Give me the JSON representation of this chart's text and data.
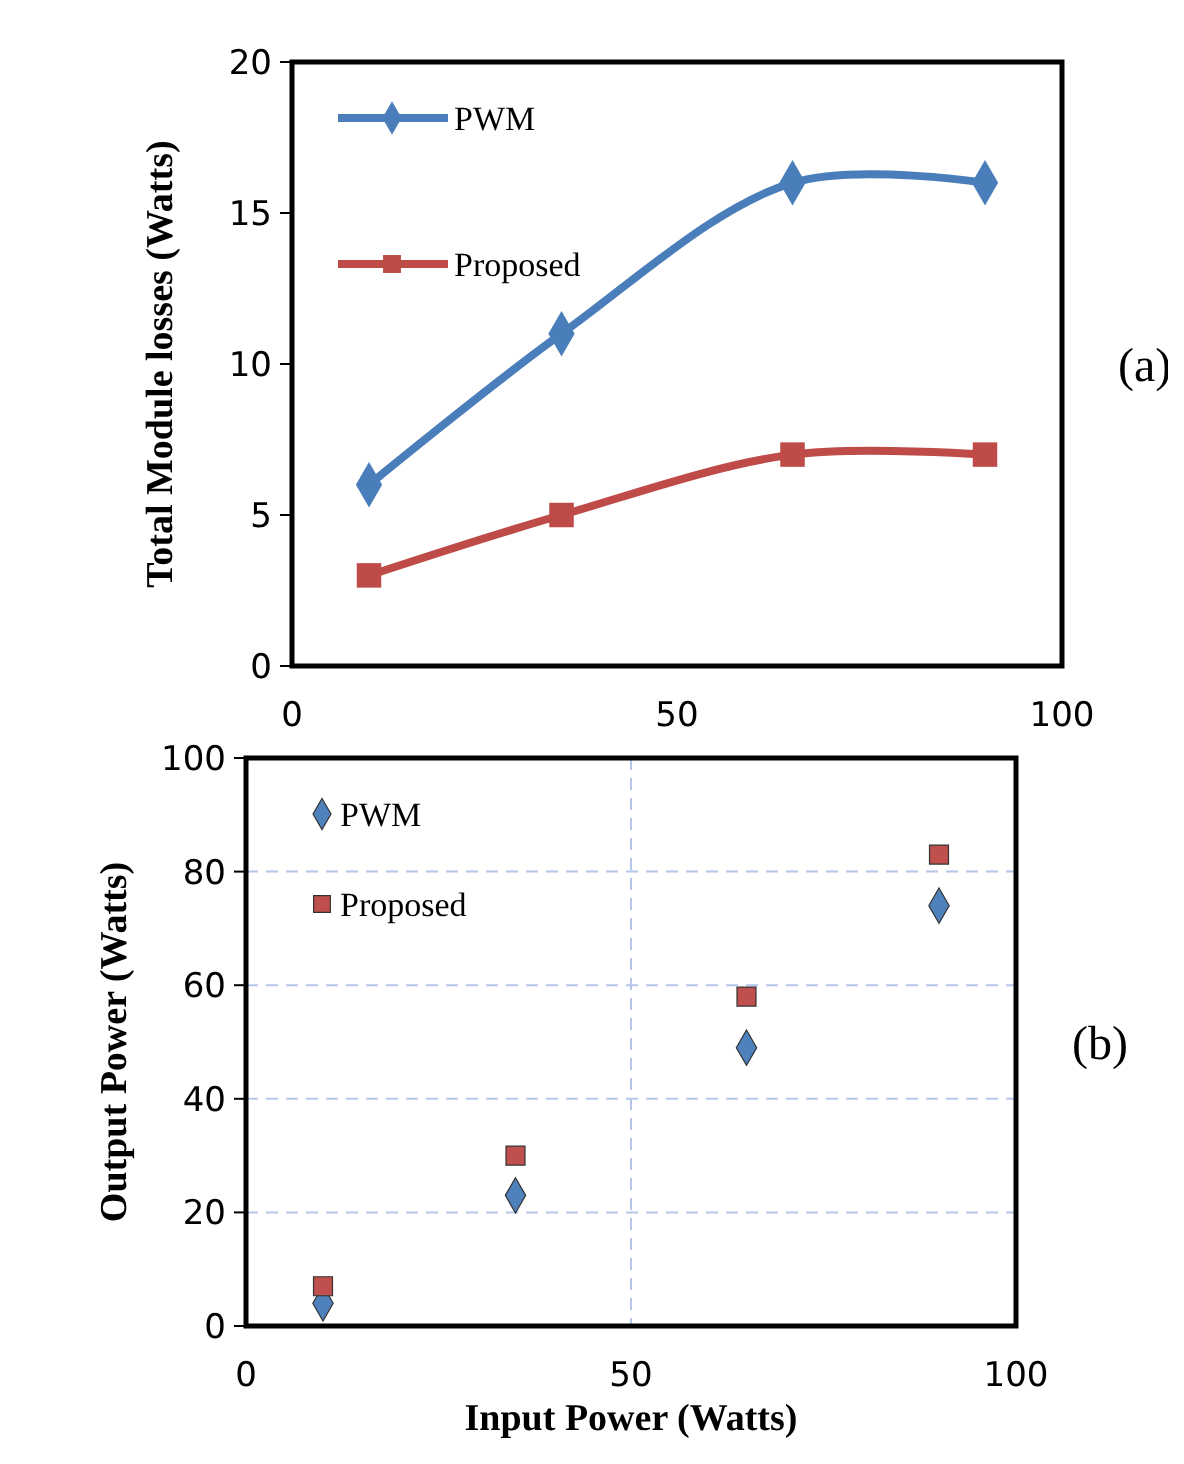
{
  "chart_data": [
    {
      "type": "line",
      "ylabel": "Total Module losses (Watts)",
      "x": [
        10,
        35,
        65,
        90
      ],
      "xlim": [
        0,
        100
      ],
      "xticks": [
        0,
        50,
        100
      ],
      "ylim": [
        0,
        20
      ],
      "yticks": [
        0,
        5,
        10,
        15,
        20
      ],
      "grid": false,
      "legend": "top left",
      "annotations": [
        "(a)"
      ],
      "series": [
        {
          "name": "PWM",
          "color": "#4a7ebb",
          "marker": "diamond",
          "values": [
            6,
            11,
            16,
            16
          ]
        },
        {
          "name": "Proposed",
          "color": "#be4b48",
          "marker": "square",
          "values": [
            3,
            5,
            7,
            7
          ]
        }
      ]
    },
    {
      "type": "scatter",
      "xlabel": "Input Power (Watts)",
      "ylabel": "Output Power (Watts)",
      "x": [
        10,
        35,
        65,
        90
      ],
      "xlim": [
        0,
        100
      ],
      "xticks": [
        0,
        50,
        100
      ],
      "ylim": [
        0,
        100
      ],
      "yticks": [
        0,
        20,
        40,
        60,
        80,
        100
      ],
      "grid": true,
      "legend": "top left",
      "annotations": [
        "(b)"
      ],
      "series": [
        {
          "name": "PWM",
          "color": "#4f81bd",
          "marker": "diamond",
          "values": [
            4,
            23,
            49,
            74
          ]
        },
        {
          "name": "Proposed",
          "color": "#c0504d",
          "marker": "square",
          "values": [
            7,
            30,
            58,
            83
          ]
        }
      ]
    }
  ]
}
